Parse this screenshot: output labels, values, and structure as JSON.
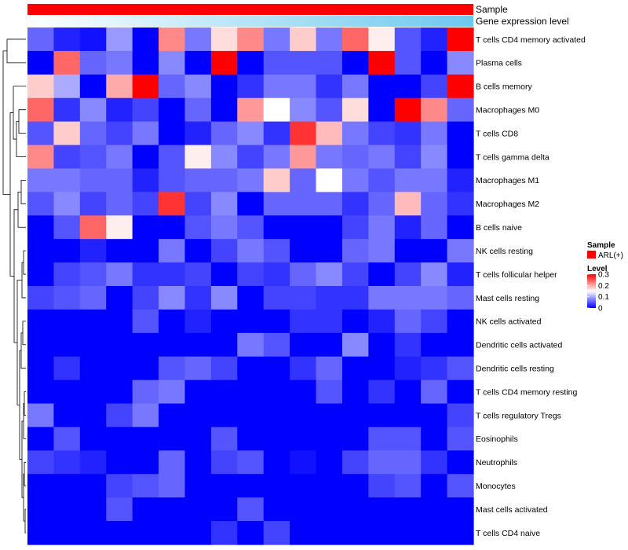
{
  "chart_data": {
    "type": "heatmap",
    "annotations": [
      {
        "name": "Sample",
        "kind": "categorical",
        "values_per_column": "ARL(+)",
        "color": "#ff0000"
      },
      {
        "name": "Gene expression level",
        "kind": "continuous",
        "gradient": [
          "#ffffff",
          "#6cc8ee"
        ]
      }
    ],
    "rows": [
      "T cells CD4 memory activated",
      "Plasma cells",
      "B cells memory",
      "Macrophages M0",
      "T cells CD8",
      "T cells gamma delta",
      "Macrophages M1",
      "Macrophages M2",
      "B cells naive",
      "NK cells resting",
      "T cells follicular helper",
      "Mast cells resting",
      "NK cells activated",
      "Dendritic cells activated",
      "Dendritic cells resting",
      "T cells CD4 memory resting",
      "T cells regulatory  Tregs",
      "Eosinophils",
      "Neutrophils",
      "Monocytes",
      "Mast cells activated",
      "T cells CD4 naive"
    ],
    "n_columns": 17,
    "values": [
      [
        0.06,
        0.02,
        0.01,
        0.09,
        0.0,
        0.22,
        0.07,
        0.17,
        0.22,
        0.07,
        0.18,
        0.07,
        0.24,
        0.16,
        0.05,
        0.02,
        0.3
      ],
      [
        0.0,
        0.24,
        0.06,
        0.07,
        0.0,
        0.08,
        0.0,
        0.3,
        0.0,
        0.05,
        0.05,
        0.05,
        0.0,
        0.3,
        0.05,
        0.0,
        0.08
      ],
      [
        0.18,
        0.1,
        0.0,
        0.2,
        0.3,
        0.06,
        0.08,
        0.0,
        0.03,
        0.07,
        0.07,
        0.03,
        0.07,
        0.0,
        0.0,
        0.04,
        0.3
      ],
      [
        0.24,
        0.03,
        0.08,
        0.02,
        0.04,
        0.0,
        0.06,
        0.0,
        0.21,
        0.15,
        0.08,
        0.05,
        0.17,
        0.0,
        0.3,
        0.22,
        0.06
      ],
      [
        0.05,
        0.18,
        0.06,
        0.04,
        0.07,
        0.0,
        0.02,
        0.06,
        0.08,
        0.03,
        0.27,
        0.19,
        0.07,
        0.04,
        0.03,
        0.07,
        0.0
      ],
      [
        0.22,
        0.04,
        0.05,
        0.07,
        0.0,
        0.05,
        0.16,
        0.08,
        0.04,
        0.07,
        0.21,
        0.07,
        0.06,
        0.07,
        0.04,
        0.08,
        0.0
      ],
      [
        0.07,
        0.07,
        0.06,
        0.06,
        0.02,
        0.05,
        0.06,
        0.06,
        0.07,
        0.18,
        0.06,
        0.15,
        0.07,
        0.05,
        0.07,
        0.07,
        0.02
      ],
      [
        0.05,
        0.08,
        0.04,
        0.06,
        0.04,
        0.27,
        0.04,
        0.08,
        0.0,
        0.06,
        0.06,
        0.06,
        0.03,
        0.06,
        0.19,
        0.06,
        0.03
      ],
      [
        0.0,
        0.05,
        0.24,
        0.16,
        0.0,
        0.0,
        0.05,
        0.07,
        0.05,
        0.0,
        0.0,
        0.0,
        0.04,
        0.07,
        0.02,
        0.06,
        0.0
      ],
      [
        0.0,
        0.0,
        0.02,
        0.0,
        0.0,
        0.07,
        0.0,
        0.04,
        0.07,
        0.05,
        0.0,
        0.0,
        0.06,
        0.07,
        0.0,
        0.0,
        0.07
      ],
      [
        0.0,
        0.04,
        0.05,
        0.07,
        0.03,
        0.03,
        0.04,
        0.0,
        0.04,
        0.03,
        0.06,
        0.08,
        0.04,
        0.0,
        0.04,
        0.08,
        0.02
      ],
      [
        0.04,
        0.05,
        0.06,
        0.0,
        0.04,
        0.08,
        0.03,
        0.08,
        0.0,
        0.04,
        0.04,
        0.03,
        0.03,
        0.07,
        0.07,
        0.07,
        0.06
      ],
      [
        0.0,
        0.0,
        0.0,
        0.0,
        0.05,
        0.0,
        0.02,
        0.0,
        0.0,
        0.0,
        0.03,
        0.03,
        0.0,
        0.02,
        0.06,
        0.04,
        0.0
      ],
      [
        0.0,
        0.0,
        0.0,
        0.0,
        0.0,
        0.0,
        0.0,
        0.0,
        0.07,
        0.05,
        0.0,
        0.0,
        0.08,
        0.0,
        0.03,
        0.0,
        0.0
      ],
      [
        0.0,
        0.03,
        0.0,
        0.0,
        0.0,
        0.05,
        0.06,
        0.04,
        0.0,
        0.0,
        0.03,
        0.06,
        0.0,
        0.0,
        0.02,
        0.03,
        0.05
      ],
      [
        0.0,
        0.0,
        0.0,
        0.0,
        0.06,
        0.07,
        0.0,
        0.0,
        0.0,
        0.0,
        0.0,
        0.05,
        0.0,
        0.03,
        0.0,
        0.06,
        0.0
      ],
      [
        0.07,
        0.0,
        0.0,
        0.04,
        0.07,
        0.0,
        0.0,
        0.0,
        0.0,
        0.0,
        0.0,
        0.0,
        0.0,
        0.0,
        0.0,
        0.0,
        0.04
      ],
      [
        0.0,
        0.05,
        0.0,
        0.0,
        0.0,
        0.0,
        0.0,
        0.05,
        0.0,
        0.0,
        0.0,
        0.0,
        0.0,
        0.05,
        0.05,
        0.0,
        0.05
      ],
      [
        0.04,
        0.03,
        0.02,
        0.0,
        0.0,
        0.06,
        0.0,
        0.04,
        0.05,
        0.0,
        0.01,
        0.0,
        0.04,
        0.06,
        0.06,
        0.03,
        0.0
      ],
      [
        0.0,
        0.0,
        0.0,
        0.04,
        0.05,
        0.06,
        0.0,
        0.0,
        0.0,
        0.0,
        0.0,
        0.0,
        0.0,
        0.04,
        0.05,
        0.0,
        0.05
      ],
      [
        0.0,
        0.0,
        0.0,
        0.05,
        0.0,
        0.0,
        0.0,
        0.0,
        0.05,
        0.0,
        0.0,
        0.0,
        0.0,
        0.0,
        0.0,
        0.0,
        0.0
      ],
      [
        0.0,
        0.0,
        0.0,
        0.0,
        0.0,
        0.0,
        0.0,
        0.03,
        0.0,
        0.04,
        0.0,
        0.0,
        0.0,
        0.0,
        0.0,
        0.0,
        0.0
      ]
    ],
    "color_scale": {
      "min": 0,
      "max": 0.3,
      "stops": [
        {
          "value": 0,
          "color": "#0000ff"
        },
        {
          "value": 0.15,
          "color": "#ffffff"
        },
        {
          "value": 0.3,
          "color": "#ff0000"
        }
      ]
    },
    "legend": {
      "sample_title": "Sample",
      "sample_entry": "ARL(+)",
      "level_title": "Level",
      "ticks": [
        {
          "value": 0.3,
          "label": "0.3"
        },
        {
          "value": 0.2,
          "label": "0.2"
        },
        {
          "value": 0.1,
          "label": "0.1"
        },
        {
          "value": 0,
          "label": "0"
        }
      ]
    },
    "row_dendrogram": true
  }
}
